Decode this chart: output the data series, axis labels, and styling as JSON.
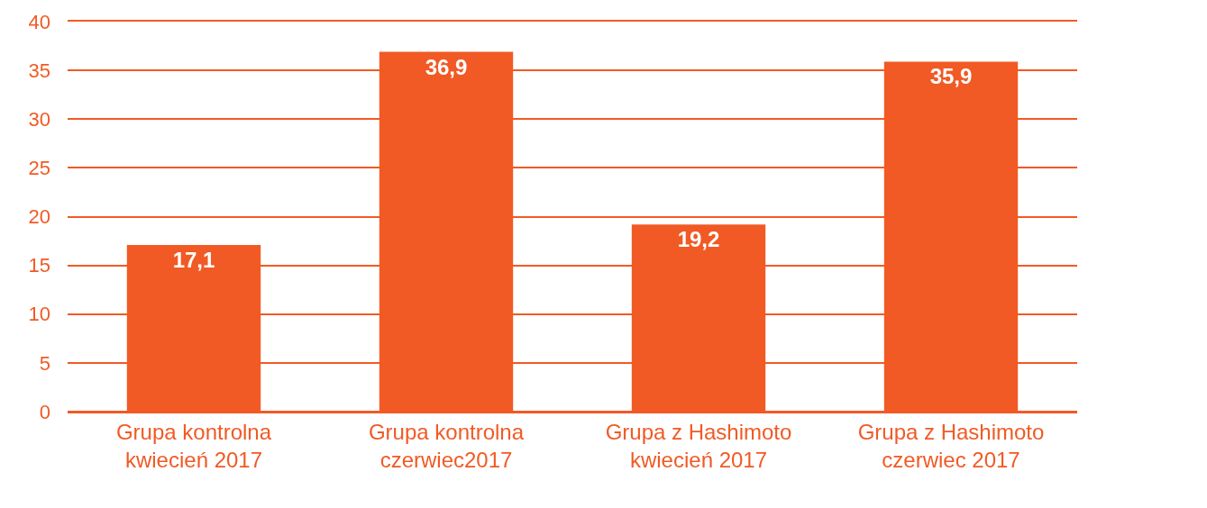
{
  "chart_data": {
    "type": "bar",
    "categories": [
      "Grupa kontrolna\nkwiecień 2017",
      "Grupa kontrolna\nczerwiec2017",
      "Grupa z Hashimoto\nkwiecień 2017",
      "Grupa z Hashimoto\nczerwiec 2017"
    ],
    "values": [
      17.1,
      36.9,
      19.2,
      35.9
    ],
    "value_labels": [
      "17,1",
      "36,9",
      "19,2",
      "35,9"
    ],
    "color": "#f15a24",
    "ylim": [
      0,
      40
    ],
    "yticks": [
      0,
      5,
      10,
      15,
      20,
      25,
      30,
      35,
      40
    ],
    "grid": "y"
  }
}
